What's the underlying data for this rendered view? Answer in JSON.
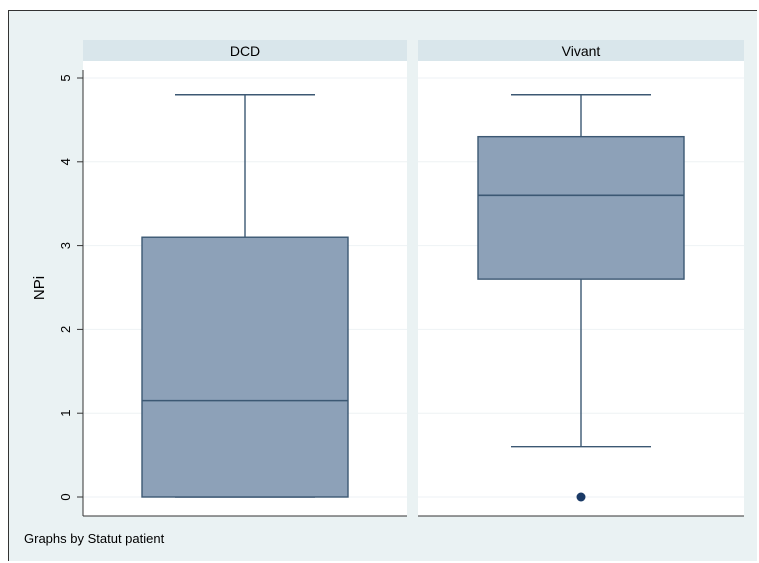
{
  "chart_data": {
    "type": "boxplot",
    "ylabel": "NPi",
    "note": "Graphs by Statut patient",
    "ylim": [
      0,
      5
    ],
    "yticks": [
      "0",
      "1",
      "2",
      "3",
      "4",
      "5"
    ],
    "grid": true,
    "colors": {
      "box_fill": "#8da1b8",
      "box_stroke": "#3c5873",
      "panel_bg": "#ffffff",
      "strip_bg": "#d9e6eb",
      "outer_bg": "#eaf2f3",
      "grid": "#eef2f4",
      "outlier": "#1a3a66"
    },
    "panels": [
      {
        "name": "DCD",
        "whisker_low": 0,
        "q1": 0,
        "median": 1.15,
        "q3": 3.1,
        "whisker_high": 4.8,
        "outliers": []
      },
      {
        "name": "Vivant",
        "whisker_low": 0.6,
        "q1": 2.6,
        "median": 3.6,
        "q3": 4.3,
        "whisker_high": 4.8,
        "outliers": [
          0
        ]
      }
    ]
  }
}
